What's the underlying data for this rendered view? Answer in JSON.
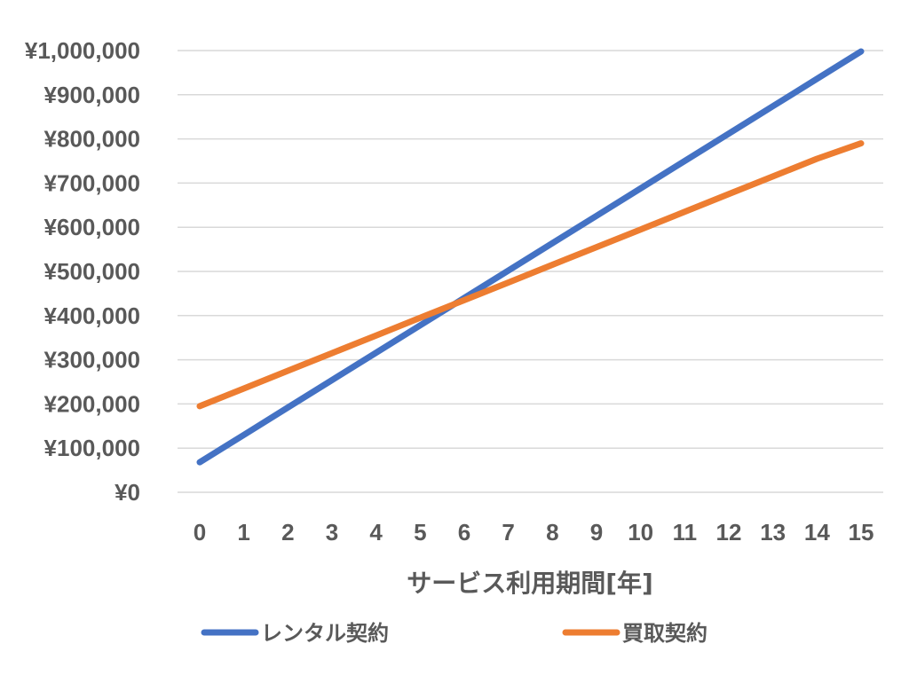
{
  "chart_data": {
    "type": "line",
    "x": [
      0,
      1,
      2,
      3,
      4,
      5,
      6,
      7,
      8,
      9,
      10,
      11,
      12,
      13,
      14,
      15
    ],
    "x_tick_labels": [
      "0",
      "1",
      "2",
      "3",
      "4",
      "5",
      "6",
      "7",
      "8",
      "9",
      "10",
      "11",
      "12",
      "13",
      "14",
      "15"
    ],
    "xlabel": "サービス利用期間[年]",
    "ylabel": "",
    "ylim": [
      0,
      1000000
    ],
    "y_tick_labels": [
      "¥0",
      "¥100,000",
      "¥200,000",
      "¥300,000",
      "¥400,000",
      "¥500,000",
      "¥600,000",
      "¥700,000",
      "¥800,000",
      "¥900,000",
      "¥1,000,000"
    ],
    "y_tick_values": [
      0,
      100000,
      200000,
      300000,
      400000,
      500000,
      600000,
      700000,
      800000,
      900000,
      1000000
    ],
    "grid": true,
    "legend_placement": "bottom",
    "series": [
      {
        "name": "レンタル契約",
        "color": "#4472C4",
        "values": [
          68000,
          130000,
          192000,
          254000,
          316000,
          378000,
          440000,
          502000,
          564000,
          626000,
          688000,
          750000,
          812000,
          874000,
          936000,
          998000
        ]
      },
      {
        "name": "買取契約",
        "color": "#ED7D31",
        "values": [
          195000,
          235000,
          275000,
          315000,
          355000,
          395000,
          435000,
          475000,
          515000,
          555000,
          595000,
          635000,
          675000,
          715000,
          755000,
          790000
        ]
      }
    ]
  }
}
